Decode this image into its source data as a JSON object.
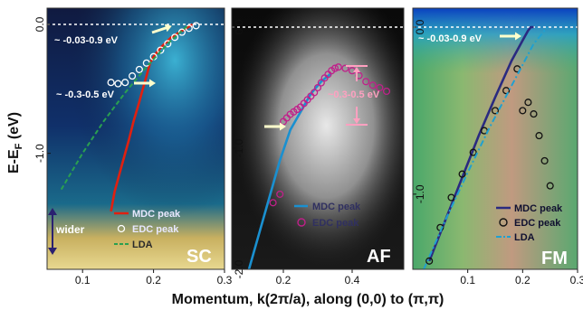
{
  "figure": {
    "xlabel": "Momentum, k(2π/a), along (0,0) to (π,π)",
    "ylabel": "E-E",
    "ylabel_sub": "F",
    "ylabel_unit": " (eV)"
  },
  "chart_data": [
    {
      "type": "scatter",
      "panel_label": "SC",
      "xlim": [
        0.05,
        0.3
      ],
      "ylim": [
        -1.9,
        0.08
      ],
      "xticks": [
        "0.1",
        "0.2",
        "0.3"
      ],
      "yticks": [
        "0.0",
        "-1.0"
      ],
      "yticks_values": [
        0.0,
        -1.0
      ],
      "legend": [
        "MDC peak",
        "EDC peak",
        "LDA"
      ],
      "annotations": [
        "~ -0.03-0.9 eV",
        "~ -0.3-0.5 eV",
        "wider"
      ],
      "series": [
        {
          "name": "MDC peak",
          "x": [
            0.14,
            0.145,
            0.155,
            0.165,
            0.172,
            0.18,
            0.185,
            0.19,
            0.195,
            0.2,
            0.21,
            0.225,
            0.24,
            0.255
          ],
          "y": [
            -1.45,
            -1.3,
            -1.1,
            -0.9,
            -0.75,
            -0.6,
            -0.5,
            -0.4,
            -0.3,
            -0.25,
            -0.18,
            -0.1,
            -0.05,
            0.0
          ]
        },
        {
          "name": "EDC peak",
          "x": [
            0.14,
            0.15,
            0.16,
            0.17,
            0.18,
            0.19,
            0.2,
            0.21,
            0.22,
            0.23,
            0.24,
            0.25,
            0.26
          ],
          "y": [
            -0.45,
            -0.46,
            -0.45,
            -0.4,
            -0.35,
            -0.3,
            -0.25,
            -0.2,
            -0.15,
            -0.1,
            -0.06,
            -0.03,
            -0.01
          ]
        },
        {
          "name": "LDA",
          "x": [
            0.07,
            0.1,
            0.13,
            0.16,
            0.19,
            0.22,
            0.25
          ],
          "y": [
            -1.28,
            -1.0,
            -0.75,
            -0.53,
            -0.33,
            -0.15,
            0.0
          ]
        }
      ]
    },
    {
      "type": "scatter",
      "panel_label": "AF",
      "xlim": [
        0.05,
        0.55
      ],
      "ylim": [
        -2.0,
        0.08
      ],
      "xticks": [
        "0.2",
        "0.4"
      ],
      "yticks": [
        "0.0",
        "-1.0",
        "-2.0"
      ],
      "yticks_values": [
        0.0,
        -1.0,
        -2.0
      ],
      "legend": [
        "MDC peak",
        "EDC peak"
      ],
      "annotations": [
        "~0.3-0.5 eV"
      ],
      "series": [
        {
          "name": "MDC peak",
          "x": [
            0.1,
            0.13,
            0.16,
            0.19,
            0.22,
            0.25,
            0.28,
            0.31,
            0.34
          ],
          "y": [
            -2.0,
            -1.7,
            -1.4,
            -1.1,
            -0.85,
            -0.7,
            -0.55,
            -0.45,
            -0.38
          ]
        },
        {
          "name": "EDC peak",
          "x": [
            0.17,
            0.19,
            0.2,
            0.21,
            0.22,
            0.23,
            0.24,
            0.25,
            0.26,
            0.27,
            0.28,
            0.29,
            0.3,
            0.31,
            0.32,
            0.33,
            0.34,
            0.35,
            0.36,
            0.38,
            0.4,
            0.42,
            0.44,
            0.46,
            0.48,
            0.5
          ],
          "y": [
            -1.45,
            -1.38,
            -0.78,
            -0.75,
            -0.72,
            -0.7,
            -0.68,
            -0.66,
            -0.63,
            -0.6,
            -0.57,
            -0.54,
            -0.5,
            -0.46,
            -0.42,
            -0.39,
            -0.36,
            -0.34,
            -0.33,
            -0.34,
            -0.36,
            -0.4,
            -0.45,
            -0.48,
            -0.5,
            -0.53
          ]
        }
      ]
    },
    {
      "type": "scatter",
      "panel_label": "FM",
      "xlim": [
        0.0,
        0.3
      ],
      "ylim": [
        -1.45,
        0.08
      ],
      "xticks": [
        "0.1",
        "0.2",
        "0.3"
      ],
      "yticks": [
        "0.0",
        "-1.0"
      ],
      "yticks_values": [
        0.0,
        -1.0
      ],
      "legend": [
        "MDC peak",
        "EDC peak",
        "LDA"
      ],
      "annotations": [
        "~ -0.03-0.9 eV"
      ],
      "series": [
        {
          "name": "MDC peak",
          "x": [
            0.03,
            0.06,
            0.09,
            0.12,
            0.15,
            0.18,
            0.2,
            0.21,
            0.215,
            0.22
          ],
          "y": [
            -1.4,
            -1.15,
            -0.9,
            -0.65,
            -0.42,
            -0.2,
            -0.08,
            -0.02,
            0.0,
            0.0
          ]
        },
        {
          "name": "EDC peak",
          "x": [
            0.03,
            0.05,
            0.07,
            0.09,
            0.11,
            0.13,
            0.15,
            0.17,
            0.19,
            0.2,
            0.21,
            0.22,
            0.23,
            0.24,
            0.25
          ],
          "y": [
            -1.4,
            -1.2,
            -1.02,
            -0.88,
            -0.75,
            -0.62,
            -0.5,
            -0.38,
            -0.25,
            -0.5,
            -0.45,
            -0.52,
            -0.65,
            -0.8,
            -0.95
          ]
        },
        {
          "name": "LDA",
          "x": [
            0.02,
            0.06,
            0.1,
            0.14,
            0.18,
            0.22,
            0.245
          ],
          "y": [
            -1.45,
            -1.15,
            -0.87,
            -0.6,
            -0.35,
            -0.1,
            0.0
          ]
        }
      ]
    }
  ],
  "colors": {
    "mdc_sc": "#e02010",
    "mdc_af": "#1a90d0",
    "mdc_fm": "#2a2a80",
    "edc_sc": "#ffffff",
    "edc_af": "#c0208a",
    "edc_fm": "#111111",
    "lda_sc": "#2aa050",
    "lda_fm": "#20a0d0",
    "arrow": "#ffffcc",
    "pink_arrow": "#ffa0c0"
  }
}
